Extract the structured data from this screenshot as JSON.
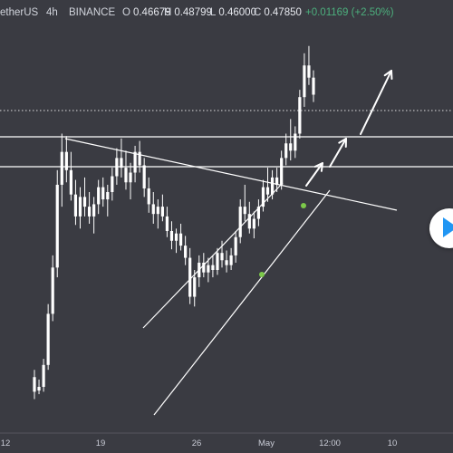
{
  "header": {
    "symbol": "etherUS",
    "interval": "4h",
    "exchange": "BINANCE",
    "open_key": "O",
    "open": "0.46679",
    "high_key": "H",
    "high": "0.48799",
    "low_key": "L",
    "low": "0.46000",
    "close_key": "C",
    "close": "0.47850",
    "change": "+0.01169 (+2.50%)"
  },
  "colors": {
    "background": "#3a3b42",
    "candle": "#ffffff",
    "drawing": "#ffffff",
    "marker": "#7cc94a",
    "play_button": "#ffffff",
    "play_icon": "#2196f3"
  },
  "play_icon": "play-icon",
  "chart_data": {
    "type": "candlestick",
    "x_ticks": [
      "12",
      "19",
      "26",
      "May",
      "12:00",
      "10"
    ],
    "y_range": [
      0.2,
      0.52
    ],
    "grid": false,
    "legend": "none",
    "candles": [
      [
        0.24,
        0.246,
        0.222,
        0.228
      ],
      [
        0.229,
        0.238,
        0.226,
        0.232
      ],
      [
        0.232,
        0.255,
        0.228,
        0.25
      ],
      [
        0.25,
        0.3,
        0.246,
        0.292
      ],
      [
        0.292,
        0.34,
        0.286,
        0.33
      ],
      [
        0.33,
        0.41,
        0.322,
        0.398
      ],
      [
        0.398,
        0.44,
        0.38,
        0.425
      ],
      [
        0.425,
        0.438,
        0.4,
        0.41
      ],
      [
        0.41,
        0.425,
        0.385,
        0.39
      ],
      [
        0.39,
        0.402,
        0.365,
        0.372
      ],
      [
        0.372,
        0.396,
        0.362,
        0.388
      ],
      [
        0.388,
        0.404,
        0.372,
        0.38
      ],
      [
        0.38,
        0.392,
        0.366,
        0.372
      ],
      [
        0.372,
        0.388,
        0.358,
        0.382
      ],
      [
        0.382,
        0.402,
        0.374,
        0.396
      ],
      [
        0.396,
        0.404,
        0.38,
        0.386
      ],
      [
        0.386,
        0.398,
        0.372,
        0.392
      ],
      [
        0.392,
        0.412,
        0.385,
        0.405
      ],
      [
        0.405,
        0.428,
        0.398,
        0.42
      ],
      [
        0.42,
        0.436,
        0.404,
        0.412
      ],
      [
        0.412,
        0.426,
        0.394,
        0.4
      ],
      [
        0.4,
        0.416,
        0.386,
        0.408
      ],
      [
        0.408,
        0.43,
        0.4,
        0.425
      ],
      [
        0.425,
        0.434,
        0.408,
        0.414
      ],
      [
        0.414,
        0.42,
        0.388,
        0.395
      ],
      [
        0.395,
        0.404,
        0.375,
        0.382
      ],
      [
        0.382,
        0.392,
        0.366,
        0.374
      ],
      [
        0.374,
        0.386,
        0.362,
        0.38
      ],
      [
        0.38,
        0.39,
        0.368,
        0.372
      ],
      [
        0.372,
        0.38,
        0.355,
        0.36
      ],
      [
        0.36,
        0.368,
        0.345,
        0.352
      ],
      [
        0.352,
        0.362,
        0.342,
        0.358
      ],
      [
        0.358,
        0.366,
        0.344,
        0.348
      ],
      [
        0.348,
        0.356,
        0.332,
        0.338
      ],
      [
        0.338,
        0.346,
        0.3,
        0.306
      ],
      [
        0.306,
        0.328,
        0.298,
        0.322
      ],
      [
        0.322,
        0.34,
        0.314,
        0.334
      ],
      [
        0.334,
        0.342,
        0.322,
        0.326
      ],
      [
        0.326,
        0.338,
        0.318,
        0.332
      ],
      [
        0.332,
        0.34,
        0.322,
        0.328
      ],
      [
        0.328,
        0.346,
        0.324,
        0.342
      ],
      [
        0.342,
        0.352,
        0.33,
        0.336
      ],
      [
        0.336,
        0.344,
        0.326,
        0.332
      ],
      [
        0.332,
        0.346,
        0.328,
        0.34
      ],
      [
        0.34,
        0.36,
        0.334,
        0.355
      ],
      [
        0.355,
        0.386,
        0.35,
        0.38
      ],
      [
        0.38,
        0.398,
        0.368,
        0.374
      ],
      [
        0.374,
        0.384,
        0.358,
        0.362
      ],
      [
        0.362,
        0.376,
        0.354,
        0.37
      ],
      [
        0.37,
        0.386,
        0.364,
        0.38
      ],
      [
        0.38,
        0.402,
        0.376,
        0.396
      ],
      [
        0.396,
        0.412,
        0.384,
        0.39
      ],
      [
        0.39,
        0.41,
        0.386,
        0.404
      ],
      [
        0.404,
        0.412,
        0.392,
        0.398
      ],
      [
        0.398,
        0.426,
        0.394,
        0.42
      ],
      [
        0.42,
        0.44,
        0.414,
        0.432
      ],
      [
        0.432,
        0.452,
        0.418,
        0.426
      ],
      [
        0.426,
        0.446,
        0.42,
        0.44
      ],
      [
        0.44,
        0.476,
        0.436,
        0.47
      ],
      [
        0.47,
        0.506,
        0.462,
        0.496
      ],
      [
        0.496,
        0.512,
        0.48,
        0.486
      ],
      [
        0.486,
        0.492,
        0.466,
        0.472
      ]
    ]
  }
}
